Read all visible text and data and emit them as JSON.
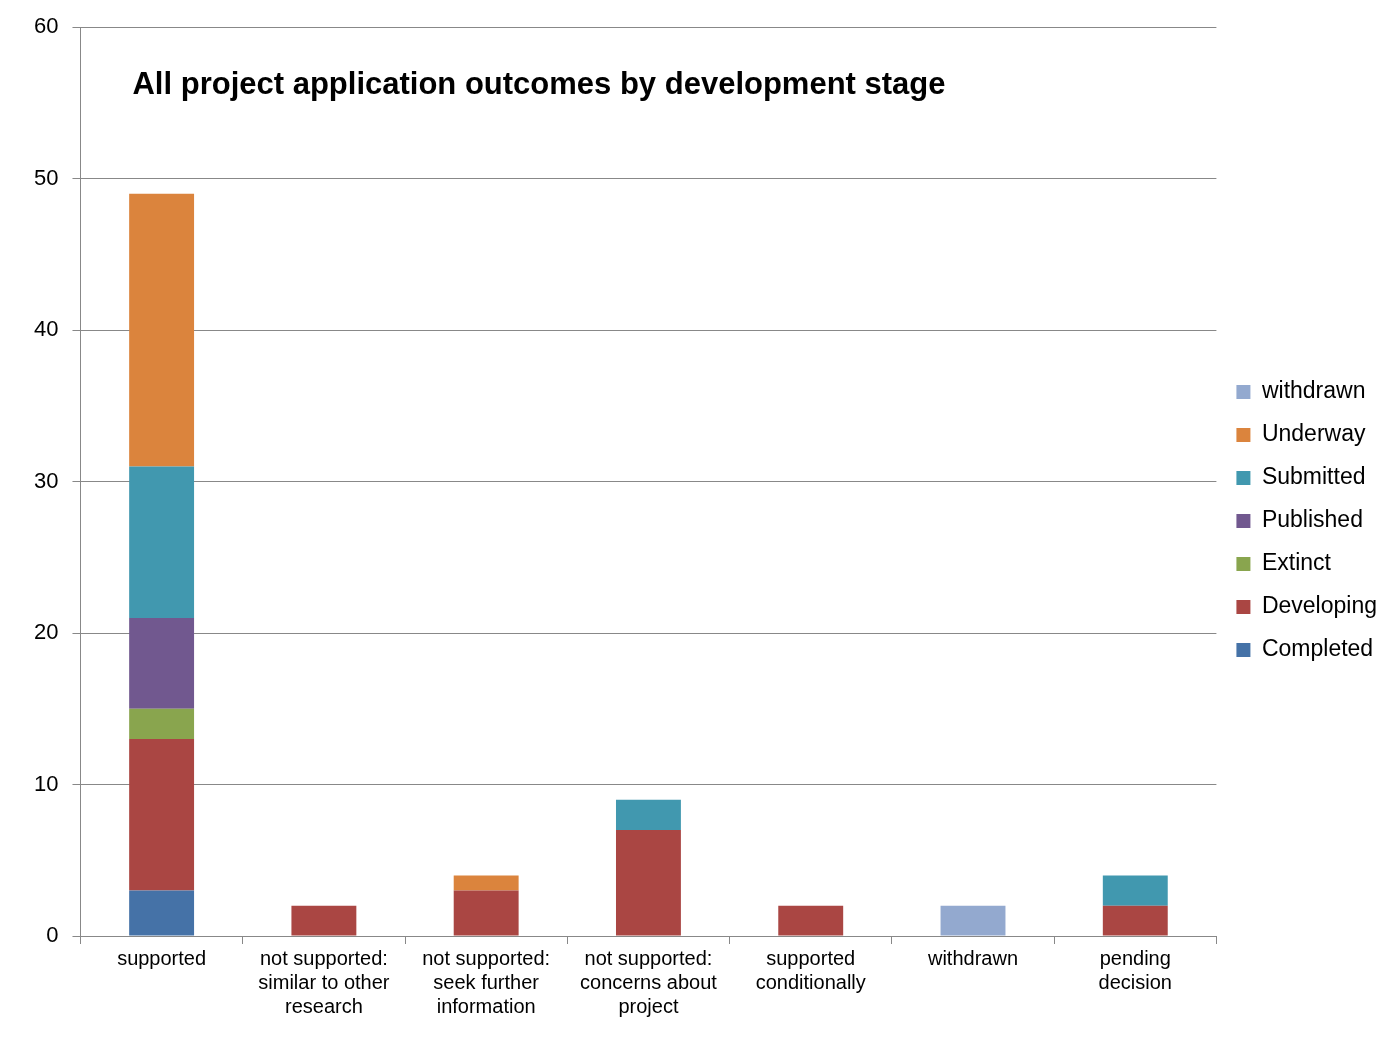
{
  "chart_data": {
    "type": "bar",
    "title": "All project application outcomes by development stage",
    "categories": [
      "supported",
      "not supported: similar to other research",
      "not supported: seek further information",
      "not supported: concerns about project",
      "supported conditionally",
      "withdrawn",
      "pending decision"
    ],
    "series": [
      {
        "name": "Completed",
        "color": "#4572a7",
        "values": [
          3,
          null,
          null,
          null,
          null,
          null,
          null
        ]
      },
      {
        "name": "Developing",
        "color": "#aa4643",
        "values": [
          10,
          2,
          3,
          7,
          2,
          null,
          2
        ]
      },
      {
        "name": "Extinct",
        "color": "#89a54e",
        "values": [
          2,
          null,
          null,
          null,
          null,
          null,
          null
        ]
      },
      {
        "name": "Published",
        "color": "#71588f",
        "values": [
          6,
          null,
          null,
          null,
          null,
          null,
          null
        ]
      },
      {
        "name": "Submitted",
        "color": "#4198af",
        "values": [
          10,
          null,
          null,
          2,
          null,
          null,
          2
        ]
      },
      {
        "name": "Underway",
        "color": "#db843d",
        "values": [
          18,
          null,
          1,
          null,
          null,
          null,
          null
        ]
      },
      {
        "name": "withdrawn",
        "color": "#93a9cf",
        "values": [
          null,
          null,
          null,
          null,
          null,
          2,
          null
        ]
      }
    ],
    "stacked": true,
    "ylim": [
      0,
      60
    ],
    "yticks": [
      0,
      10,
      20,
      30,
      40,
      50,
      60
    ],
    "grid": "y",
    "legend": "right"
  }
}
